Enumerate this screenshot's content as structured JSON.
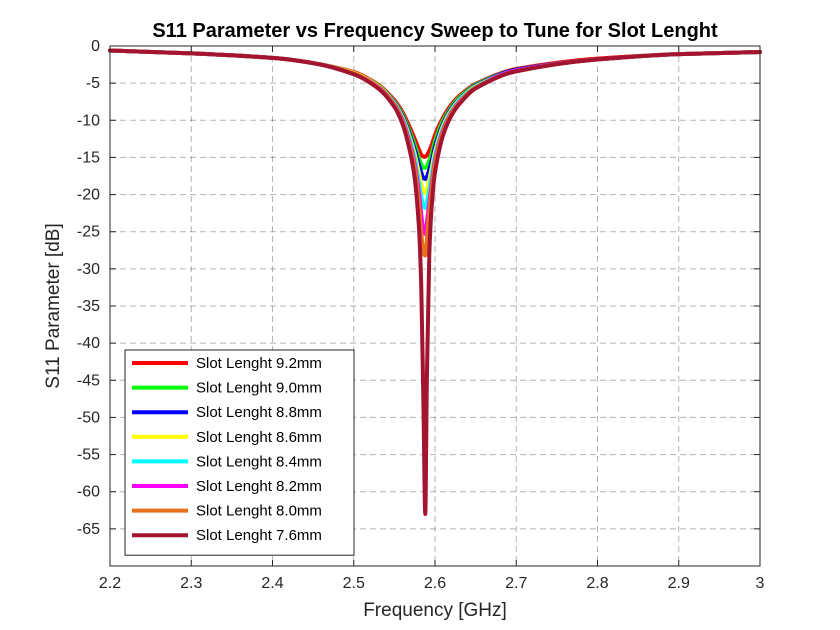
{
  "chart_data": {
    "type": "line",
    "title": "S11 Parameter vs Frequency Sweep to Tune for Slot Lenght",
    "xlabel": "Frequency [GHz]",
    "ylabel": "S11 Parameter [dB]",
    "xlim": [
      2.2,
      3.0
    ],
    "ylim": [
      -70,
      0
    ],
    "xticks": [
      2.2,
      2.3,
      2.4,
      2.5,
      2.6,
      2.7,
      2.8,
      2.9,
      3.0
    ],
    "xtick_labels": [
      "2.2",
      "2.3",
      "2.4",
      "2.5",
      "2.6",
      "2.7",
      "2.8",
      "2.9",
      "3"
    ],
    "yticks": [
      0,
      -5,
      -10,
      -15,
      -20,
      -25,
      -30,
      -35,
      -40,
      -45,
      -50,
      -55,
      -60,
      -65
    ],
    "ytick_labels": [
      "0",
      "-5",
      "-10",
      "-15",
      "-20",
      "-25",
      "-30",
      "-35",
      "-40",
      "-45",
      "-50",
      "-55",
      "-60",
      "-65"
    ],
    "grid": true,
    "legend_position": "bottom-left",
    "x": [
      2.2,
      2.3,
      2.4,
      2.45,
      2.5,
      2.53,
      2.55,
      2.56,
      2.57,
      2.575,
      2.58,
      2.583,
      2.586,
      2.588,
      2.59,
      2.593,
      2.596,
      2.6,
      2.61,
      2.62,
      2.63,
      2.65,
      2.7,
      2.8,
      2.9,
      3.0
    ],
    "series": [
      {
        "name": "Slot Lenght 9.2mm",
        "color": "#ff0000",
        "values": [
          -0.6,
          -1.0,
          -1.6,
          -2.3,
          -3.5,
          -5.2,
          -7.3,
          -8.9,
          -11.2,
          -12.5,
          -13.9,
          -14.6,
          -14.9,
          -14.9,
          -14.7,
          -14.1,
          -13.3,
          -12.0,
          -9.6,
          -7.9,
          -6.7,
          -5.1,
          -3.1,
          -1.7,
          -1.1,
          -0.8
        ]
      },
      {
        "name": "Slot Lenght 9.0mm",
        "color": "#00ff00",
        "values": [
          -0.6,
          -1.0,
          -1.6,
          -2.3,
          -3.6,
          -5.3,
          -7.5,
          -9.2,
          -11.8,
          -13.3,
          -15.0,
          -15.9,
          -16.4,
          -16.4,
          -16.1,
          -15.4,
          -14.4,
          -12.8,
          -10.0,
          -8.2,
          -6.9,
          -5.2,
          -3.2,
          -1.8,
          -1.1,
          -0.8
        ]
      },
      {
        "name": "Slot Lenght 8.8mm",
        "color": "#0000ff",
        "values": [
          -0.6,
          -1.0,
          -1.6,
          -2.3,
          -3.6,
          -5.4,
          -7.6,
          -9.4,
          -12.2,
          -13.9,
          -15.9,
          -17.0,
          -17.8,
          -17.9,
          -17.6,
          -16.6,
          -15.4,
          -13.5,
          -10.4,
          -8.4,
          -7.1,
          -5.3,
          -3.2,
          -1.8,
          -1.1,
          -0.8
        ]
      },
      {
        "name": "Slot Lenght 8.6mm",
        "color": "#ffff00",
        "values": [
          -0.6,
          -1.0,
          -1.6,
          -2.3,
          -3.6,
          -5.4,
          -7.7,
          -9.6,
          -12.6,
          -14.5,
          -17.0,
          -18.5,
          -19.6,
          -19.8,
          -19.3,
          -18.0,
          -16.4,
          -14.2,
          -10.7,
          -8.6,
          -7.2,
          -5.4,
          -3.3,
          -1.8,
          -1.1,
          -0.8
        ]
      },
      {
        "name": "Slot Lenght 8.4mm",
        "color": "#00ffff",
        "values": [
          -0.6,
          -1.0,
          -1.6,
          -2.3,
          -3.7,
          -5.5,
          -7.8,
          -9.8,
          -13.0,
          -15.2,
          -18.2,
          -20.2,
          -21.6,
          -21.8,
          -21.0,
          -19.3,
          -17.4,
          -14.8,
          -11.0,
          -8.8,
          -7.3,
          -5.5,
          -3.3,
          -1.8,
          -1.1,
          -0.8
        ]
      },
      {
        "name": "Slot Lenght 8.2mm",
        "color": "#ff00ff",
        "values": [
          -0.6,
          -1.0,
          -1.6,
          -2.3,
          -3.7,
          -5.5,
          -7.9,
          -10.0,
          -13.5,
          -15.9,
          -19.6,
          -22.6,
          -25.0,
          -25.3,
          -23.8,
          -21.0,
          -18.5,
          -15.4,
          -11.3,
          -9.0,
          -7.5,
          -5.6,
          -3.3,
          -1.8,
          -1.1,
          -0.8
        ]
      },
      {
        "name": "Slot Lenght 8.0mm",
        "color": "#e8701a",
        "values": [
          -0.6,
          -1.0,
          -1.6,
          -2.3,
          -3.7,
          -5.6,
          -8.0,
          -10.2,
          -13.9,
          -16.5,
          -21.0,
          -25.0,
          -28.0,
          -28.2,
          -26.0,
          -22.2,
          -19.2,
          -15.8,
          -11.5,
          -9.1,
          -7.6,
          -5.6,
          -3.4,
          -1.8,
          -1.1,
          -0.8
        ]
      },
      {
        "name": "Slot Lenght 7.6mm",
        "color": "#a2142f",
        "values": [
          -0.6,
          -1.0,
          -1.6,
          -2.3,
          -3.8,
          -5.7,
          -8.2,
          -10.5,
          -14.6,
          -17.8,
          -24.0,
          -32.0,
          -50.0,
          -63.0,
          -45.0,
          -28.0,
          -21.5,
          -17.0,
          -12.0,
          -9.4,
          -7.8,
          -5.7,
          -3.4,
          -1.8,
          -1.1,
          -0.8
        ]
      }
    ]
  }
}
